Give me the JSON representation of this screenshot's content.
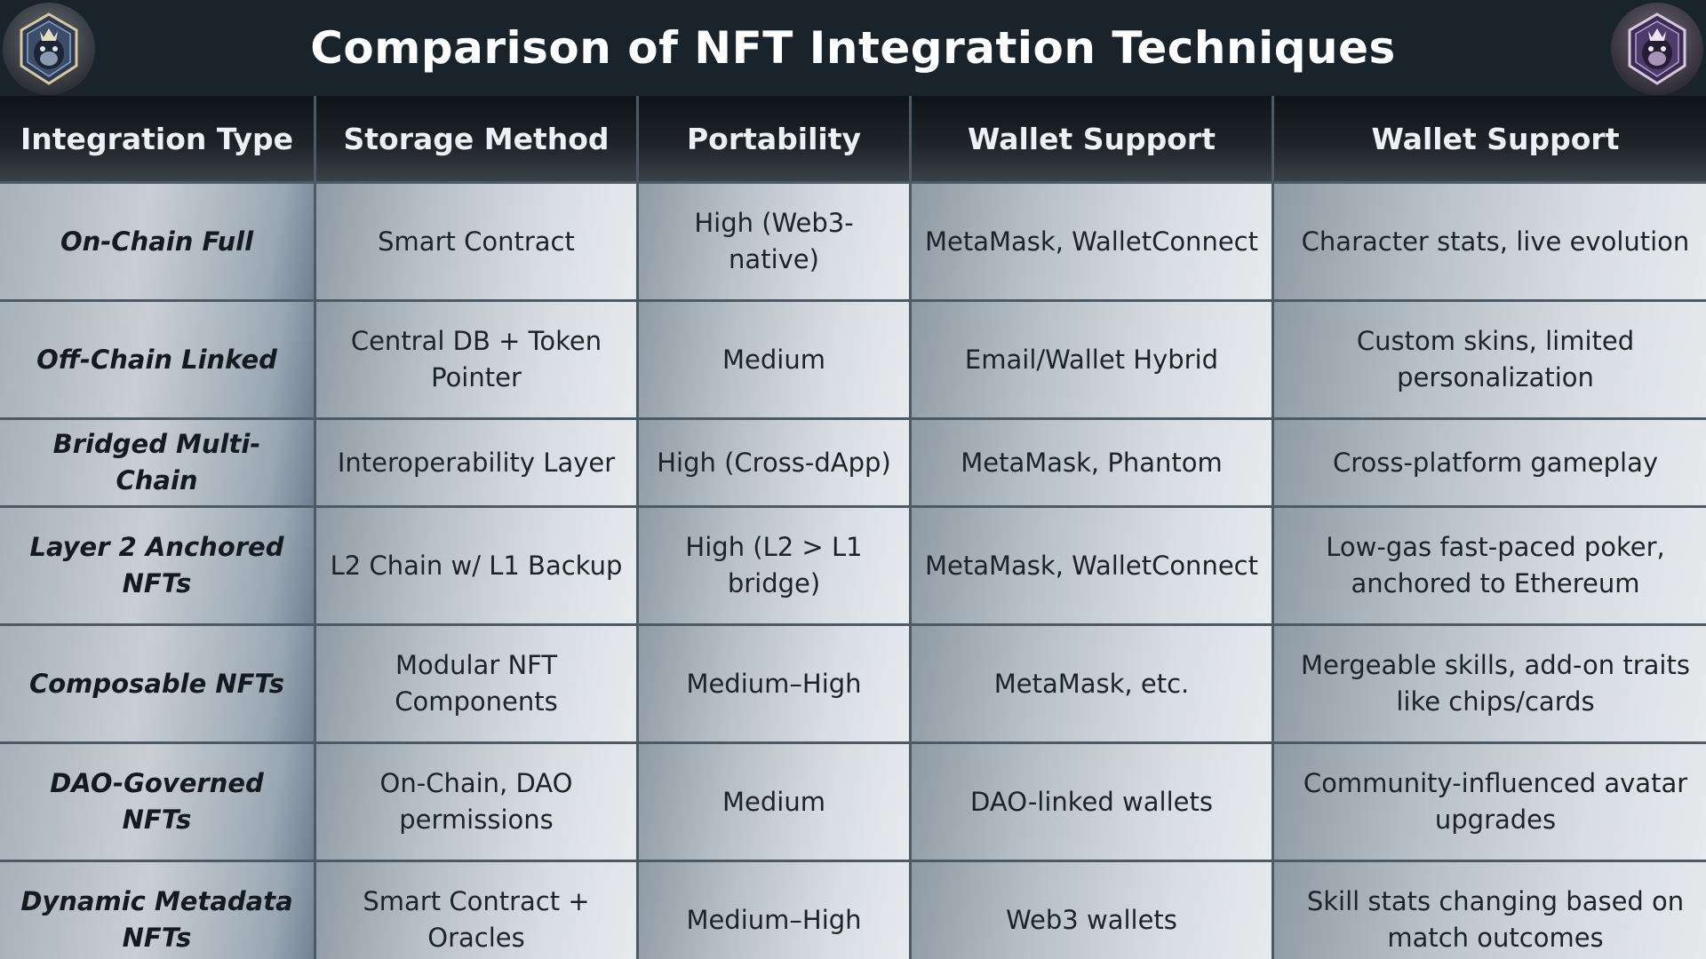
{
  "title": "Comparison of NFT Integration Techniques",
  "icons": {
    "left": "gorilla-emblem-icon",
    "right": "gorilla-emblem-icon"
  },
  "colors": {
    "header_bg": "#19232b",
    "title_text": "#ffffff",
    "column_header_bg": "#1a1f24",
    "cell_bg": "#d8dde2",
    "grid_line": "#4c5a65"
  },
  "table": {
    "headers": [
      "Integration Type",
      "Storage Method",
      "Portability",
      "Wallet Support",
      "Wallet Support"
    ],
    "rows": [
      [
        "On-Chain Full",
        "Smart Contract",
        "High (Web3-native)",
        "MetaMask, WalletConnect",
        "Character stats, live evolution"
      ],
      [
        "Off-Chain Linked",
        "Central DB + Token Pointer",
        "Medium",
        "Email/Wallet Hybrid",
        "Custom skins, limited personalization"
      ],
      [
        "Bridged Multi-Chain",
        "Interoperability Layer",
        "High (Cross-dApp)",
        "MetaMask, Phantom",
        "Cross-platform gameplay"
      ],
      [
        "Layer 2 Anchored NFTs",
        "L2 Chain w/ L1 Backup",
        "High (L2 > L1 bridge)",
        "MetaMask, WalletConnect",
        "Low-gas fast-paced poker, anchored to Ethereum"
      ],
      [
        "Composable NFTs",
        "Modular NFT Components",
        "Medium–High",
        "MetaMask, etc.",
        "Mergeable skills, add-on traits like chips/cards"
      ],
      [
        "DAO-Governed NFTs",
        "On-Chain, DAO permissions",
        "Medium",
        "DAO-linked wallets",
        "Community-influenced avatar upgrades"
      ],
      [
        "Dynamic Metadata NFTs",
        "Smart Contract + Oracles",
        "Medium–High",
        "Web3 wallets",
        "Skill stats changing based on match outcomes"
      ]
    ]
  }
}
